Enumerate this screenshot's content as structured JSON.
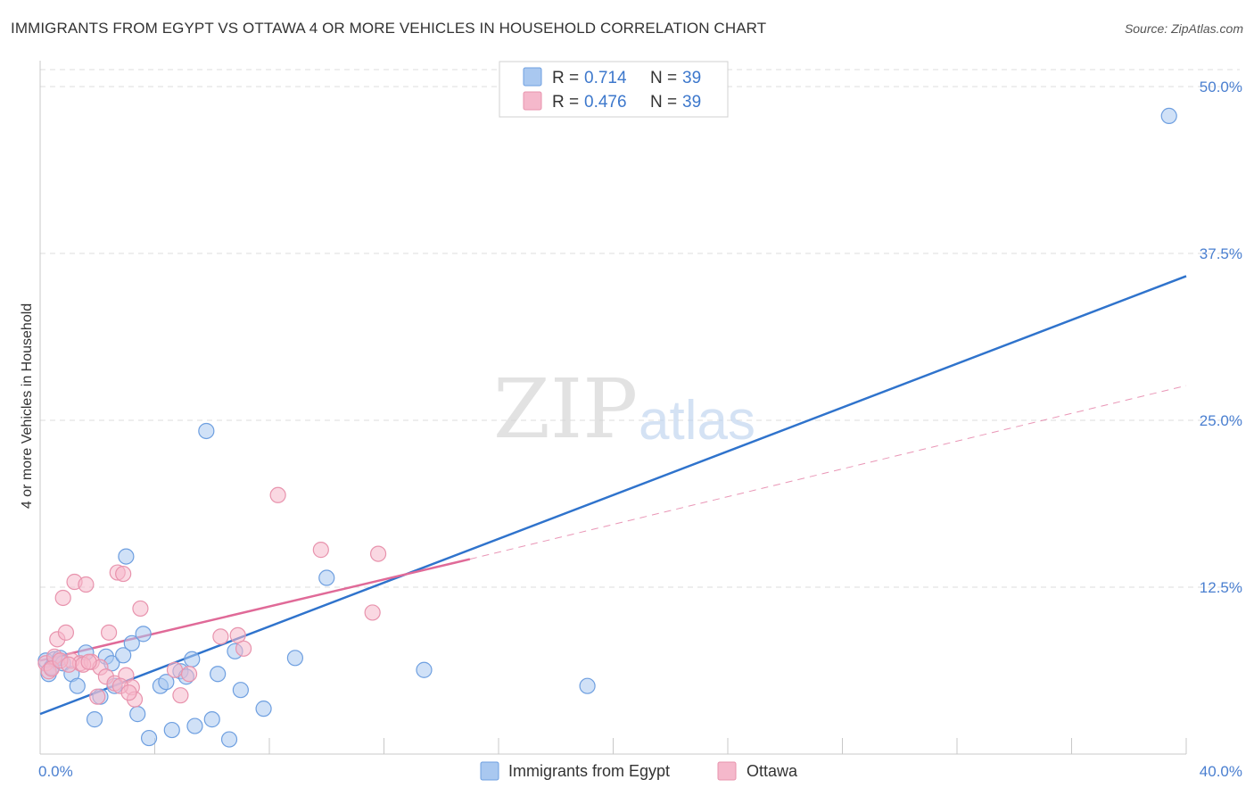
{
  "title": "IMMIGRANTS FROM EGYPT VS OTTAWA 4 OR MORE VEHICLES IN HOUSEHOLD CORRELATION CHART",
  "source": "Source: ZipAtlas.com",
  "watermark": {
    "part1": "ZIP",
    "part2": "atlas"
  },
  "legend_top": {
    "rows": [
      {
        "r_label": "R =",
        "r_value": "0.714",
        "n_label": "N =",
        "n_value": "39",
        "color": "#a9c8f0"
      },
      {
        "r_label": "R =",
        "r_value": "0.476",
        "n_label": "N =",
        "n_value": "39",
        "color": "#f5b8cb"
      }
    ]
  },
  "colors": {
    "blue_fill": "#a9c8f0",
    "blue_stroke": "#6e9fe0",
    "blue_line": "#2f73cc",
    "pink_fill": "#f5b8cb",
    "pink_stroke": "#e893ad",
    "pink_line": "#e06a98",
    "grid": "#dddddd"
  },
  "chart_data": {
    "type": "scatter",
    "title": "IMMIGRANTS FROM EGYPT VS OTTAWA 4 OR MORE VEHICLES IN HOUSEHOLD CORRELATION CHART",
    "xlabel": "",
    "ylabel": "4 or more Vehicles in Household",
    "xlim": [
      0,
      40
    ],
    "ylim": [
      0,
      50
    ],
    "x_tick_labels": [
      "0.0%",
      "40.0%"
    ],
    "y_ticks": [
      12.5,
      25.0,
      37.5,
      50.0
    ],
    "y_tick_labels": [
      "12.5%",
      "25.0%",
      "37.5%",
      "50.0%"
    ],
    "grid": true,
    "legend_position": "top-center",
    "series": [
      {
        "name": "Immigrants from Egypt",
        "color": "#a9c8f0",
        "points": [
          [
            0.2,
            7.0
          ],
          [
            0.3,
            6.0
          ],
          [
            0.4,
            6.5
          ],
          [
            0.5,
            7.1
          ],
          [
            0.7,
            7.2
          ],
          [
            0.8,
            6.8
          ],
          [
            1.1,
            6.0
          ],
          [
            1.3,
            5.1
          ],
          [
            1.6,
            7.6
          ],
          [
            1.9,
            2.6
          ],
          [
            2.1,
            4.3
          ],
          [
            2.3,
            7.3
          ],
          [
            2.5,
            6.8
          ],
          [
            2.6,
            5.1
          ],
          [
            2.9,
            7.4
          ],
          [
            3.0,
            14.8
          ],
          [
            3.2,
            8.3
          ],
          [
            3.4,
            3.0
          ],
          [
            3.6,
            9.0
          ],
          [
            3.8,
            1.2
          ],
          [
            4.2,
            5.1
          ],
          [
            4.4,
            5.4
          ],
          [
            4.6,
            1.8
          ],
          [
            4.9,
            6.2
          ],
          [
            5.1,
            5.8
          ],
          [
            5.3,
            7.1
          ],
          [
            5.4,
            2.1
          ],
          [
            5.8,
            24.2
          ],
          [
            6.0,
            2.6
          ],
          [
            6.2,
            6.0
          ],
          [
            6.6,
            1.1
          ],
          [
            6.8,
            7.7
          ],
          [
            7.0,
            4.8
          ],
          [
            7.8,
            3.4
          ],
          [
            8.9,
            7.2
          ],
          [
            10.0,
            13.2
          ],
          [
            13.4,
            6.3
          ],
          [
            19.1,
            5.1
          ],
          [
            39.4,
            47.8
          ]
        ]
      },
      {
        "name": "Ottawa",
        "color": "#f5b8cb",
        "points": [
          [
            0.2,
            6.8
          ],
          [
            0.3,
            6.2
          ],
          [
            0.5,
            7.3
          ],
          [
            0.6,
            8.6
          ],
          [
            0.8,
            11.7
          ],
          [
            0.9,
            9.1
          ],
          [
            1.1,
            7.0
          ],
          [
            1.2,
            12.9
          ],
          [
            1.4,
            6.8
          ],
          [
            1.6,
            12.7
          ],
          [
            1.8,
            6.9
          ],
          [
            2.0,
            4.3
          ],
          [
            2.1,
            6.5
          ],
          [
            2.3,
            5.8
          ],
          [
            2.4,
            9.1
          ],
          [
            2.6,
            5.3
          ],
          [
            2.7,
            13.6
          ],
          [
            2.9,
            13.5
          ],
          [
            3.0,
            5.9
          ],
          [
            3.2,
            5.0
          ],
          [
            3.3,
            4.1
          ],
          [
            3.5,
            10.9
          ],
          [
            4.7,
            6.3
          ],
          [
            4.9,
            4.4
          ],
          [
            5.2,
            6.0
          ],
          [
            6.3,
            8.8
          ],
          [
            6.9,
            8.9
          ],
          [
            7.1,
            7.9
          ],
          [
            8.3,
            19.4
          ],
          [
            9.8,
            15.3
          ],
          [
            11.6,
            10.6
          ],
          [
            11.8,
            15.0
          ],
          [
            0.4,
            6.4
          ],
          [
            0.7,
            7.0
          ],
          [
            1.0,
            6.7
          ],
          [
            1.5,
            6.7
          ],
          [
            1.7,
            6.9
          ],
          [
            2.8,
            5.1
          ],
          [
            3.1,
            4.6
          ]
        ]
      }
    ],
    "trendlines": [
      {
        "series": "Immigrants from Egypt",
        "x": [
          0,
          40
        ],
        "y": [
          3.0,
          35.8
        ],
        "style": "solid"
      },
      {
        "series": "Ottawa",
        "x": [
          0,
          15
        ],
        "y": [
          7.0,
          14.6
        ],
        "style": "solid"
      },
      {
        "series": "Ottawa",
        "x": [
          15,
          40
        ],
        "y": [
          14.6,
          27.6
        ],
        "style": "dashed"
      }
    ]
  },
  "bottom_legend": [
    {
      "label": "Immigrants from Egypt",
      "color": "#a9c8f0"
    },
    {
      "label": "Ottawa",
      "color": "#f5b8cb"
    }
  ]
}
